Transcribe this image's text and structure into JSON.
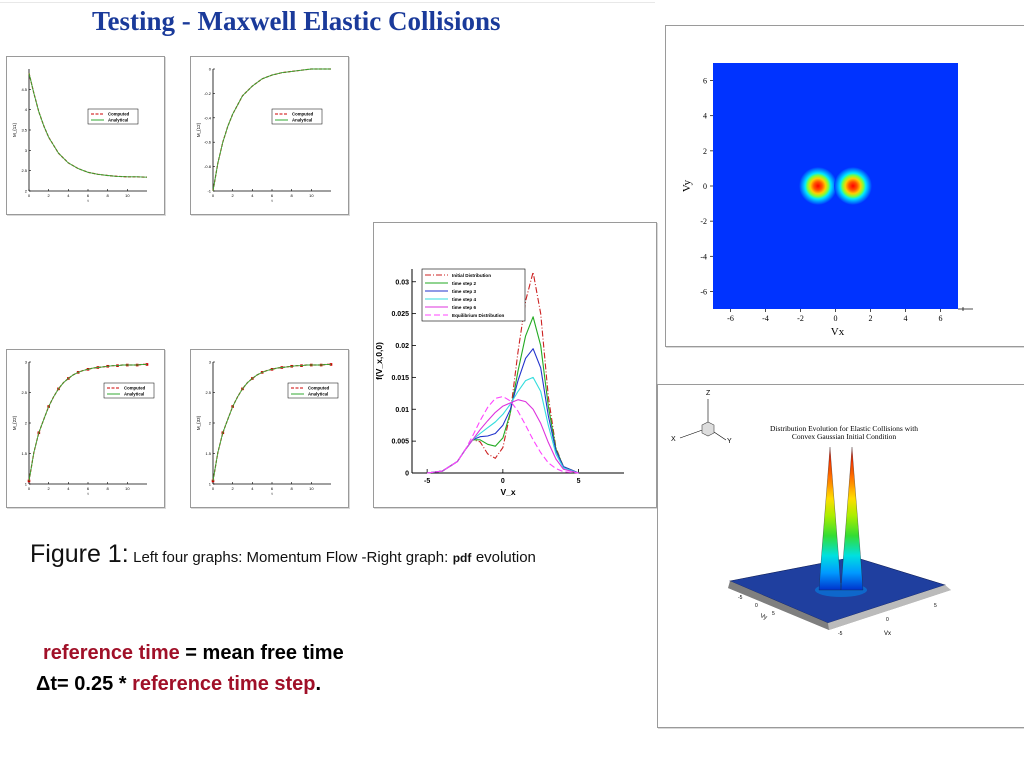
{
  "slide": {
    "title": "Testing - Maxwell Elastic Collisions",
    "caption_lead": "Figure 1:",
    "caption_text": "Left four graphs: Momentum Flow -Right graph:",
    "caption_pdf": "pdf",
    "caption_tail": "evolution",
    "note1_accent": "reference time",
    "note1_rest": " = mean free time",
    "note2_start": "Δt= 0.25 * ",
    "note2_accent": "reference time step",
    "note2_end": "."
  },
  "colors": {
    "title": "#1a3a9a",
    "accent": "#a01028",
    "computed": "#cc0000",
    "analytical": "#33aa33",
    "field_background": "#0033ff"
  },
  "chart_data": [
    {
      "id": "p1",
      "type": "line",
      "ylabel": "M_{11}",
      "legend": [
        "Computed",
        "Analytical"
      ],
      "xlim": [
        0,
        12
      ],
      "ylim": [
        2.0,
        5.0
      ],
      "xticks": [
        0,
        2,
        4,
        6,
        8,
        10
      ],
      "yticks": [
        2.0,
        2.5,
        3.0,
        3.5,
        4.0,
        4.5
      ],
      "series": [
        {
          "name": "Computed",
          "x": [
            0,
            0.5,
            1,
            1.5,
            2,
            3,
            4,
            5,
            6,
            7,
            8,
            9,
            10,
            11,
            12
          ],
          "values": [
            4.9,
            4.4,
            3.95,
            3.6,
            3.32,
            2.93,
            2.69,
            2.55,
            2.46,
            2.41,
            2.38,
            2.36,
            2.35,
            2.35,
            2.34
          ]
        },
        {
          "name": "Analytical",
          "x": [
            0,
            0.5,
            1,
            1.5,
            2,
            3,
            4,
            5,
            6,
            7,
            8,
            9,
            10,
            11,
            12
          ],
          "values": [
            4.9,
            4.4,
            3.95,
            3.6,
            3.32,
            2.93,
            2.69,
            2.55,
            2.46,
            2.41,
            2.38,
            2.36,
            2.35,
            2.35,
            2.34
          ]
        }
      ]
    },
    {
      "id": "p2",
      "type": "line",
      "ylabel": "M_{12}",
      "legend": [
        "Computed",
        "Analytical"
      ],
      "xlim": [
        0,
        12
      ],
      "ylim": [
        -1.0,
        0
      ],
      "xticks": [
        0,
        2,
        4,
        6,
        8,
        10
      ],
      "yticks": [
        -1,
        -0.8,
        -0.6,
        -0.4,
        -0.2,
        0
      ],
      "series": [
        {
          "name": "Computed",
          "x": [
            0,
            0.5,
            1,
            1.5,
            2,
            3,
            4,
            5,
            6,
            7,
            8,
            9,
            10,
            11,
            12
          ],
          "values": [
            -1.0,
            -0.77,
            -0.6,
            -0.47,
            -0.37,
            -0.22,
            -0.14,
            -0.08,
            -0.05,
            -0.03,
            -0.02,
            -0.01,
            0,
            0,
            0
          ]
        },
        {
          "name": "Analytical",
          "x": [
            0,
            0.5,
            1,
            1.5,
            2,
            3,
            4,
            5,
            6,
            7,
            8,
            9,
            10,
            11,
            12
          ],
          "values": [
            -1.0,
            -0.77,
            -0.6,
            -0.47,
            -0.37,
            -0.22,
            -0.14,
            -0.08,
            -0.05,
            -0.03,
            -0.02,
            -0.01,
            0,
            0,
            0
          ]
        }
      ]
    },
    {
      "id": "p3",
      "type": "line",
      "ylabel": "M_{22}",
      "legend": [
        "Computed",
        "Analytical"
      ],
      "xlim": [
        0,
        12
      ],
      "ylim": [
        1.0,
        3.0
      ],
      "xticks": [
        0,
        2,
        4,
        6,
        8,
        10
      ],
      "yticks": [
        1.0,
        1.5,
        2.0,
        2.5,
        3.0
      ],
      "series": [
        {
          "name": "Computed",
          "x": [
            0,
            0.5,
            1,
            1.5,
            2,
            2.5,
            3,
            3.5,
            4,
            4.5,
            5,
            5.5,
            6,
            6.5,
            7,
            7.5,
            8,
            8.5,
            9,
            9.5,
            10,
            10.5,
            11,
            11.5,
            12
          ],
          "values": [
            1.05,
            1.52,
            1.84,
            2.06,
            2.27,
            2.43,
            2.56,
            2.66,
            2.73,
            2.79,
            2.83,
            2.86,
            2.88,
            2.9,
            2.91,
            2.92,
            2.93,
            2.94,
            2.94,
            2.95,
            2.95,
            2.95,
            2.95,
            2.96,
            2.96
          ]
        },
        {
          "name": "Analytical",
          "x": [
            0,
            0.5,
            1,
            1.5,
            2,
            2.5,
            3,
            3.5,
            4,
            4.5,
            5,
            5.5,
            6,
            6.5,
            7,
            7.5,
            8,
            8.5,
            9,
            9.5,
            10,
            10.5,
            11,
            11.5,
            12
          ],
          "values": [
            1.05,
            1.52,
            1.84,
            2.06,
            2.27,
            2.43,
            2.56,
            2.66,
            2.73,
            2.79,
            2.83,
            2.86,
            2.88,
            2.9,
            2.91,
            2.92,
            2.93,
            2.94,
            2.94,
            2.95,
            2.95,
            2.95,
            2.95,
            2.96,
            2.96
          ]
        }
      ]
    },
    {
      "id": "p4",
      "type": "line",
      "ylabel": "M_{33}",
      "legend": [
        "Computed",
        "Analytical"
      ],
      "xlim": [
        0,
        12
      ],
      "ylim": [
        1.0,
        3.0
      ],
      "xticks": [
        0,
        2,
        4,
        6,
        8,
        10
      ],
      "yticks": [
        1.0,
        1.5,
        2.0,
        2.5,
        3.0
      ],
      "series": [
        {
          "name": "Computed",
          "x": [
            0,
            0.5,
            1,
            1.5,
            2,
            2.5,
            3,
            3.5,
            4,
            4.5,
            5,
            5.5,
            6,
            6.5,
            7,
            7.5,
            8,
            8.5,
            9,
            9.5,
            10,
            10.5,
            11,
            11.5,
            12
          ],
          "values": [
            1.05,
            1.52,
            1.84,
            2.06,
            2.27,
            2.43,
            2.56,
            2.66,
            2.73,
            2.79,
            2.83,
            2.86,
            2.88,
            2.9,
            2.91,
            2.92,
            2.93,
            2.94,
            2.94,
            2.95,
            2.95,
            2.95,
            2.95,
            2.96,
            2.96
          ]
        },
        {
          "name": "Analytical",
          "x": [
            0,
            0.5,
            1,
            1.5,
            2,
            2.5,
            3,
            3.5,
            4,
            4.5,
            5,
            5.5,
            6,
            6.5,
            7,
            7.5,
            8,
            8.5,
            9,
            9.5,
            10,
            10.5,
            11,
            11.5,
            12
          ],
          "values": [
            1.05,
            1.52,
            1.84,
            2.06,
            2.27,
            2.43,
            2.56,
            2.66,
            2.73,
            2.79,
            2.83,
            2.86,
            2.88,
            2.9,
            2.91,
            2.92,
            2.93,
            2.94,
            2.94,
            2.95,
            2.95,
            2.95,
            2.95,
            2.96,
            2.96
          ]
        }
      ]
    },
    {
      "id": "pdf",
      "type": "line",
      "xlabel": "V_x",
      "ylabel": "f(V_x,0,0)",
      "xlim": [
        -6,
        8
      ],
      "ylim": [
        0,
        0.032
      ],
      "xticks": [
        -5,
        0,
        5
      ],
      "yticks": [
        0,
        0.005,
        0.01,
        0.015,
        0.02,
        0.025,
        0.03
      ],
      "ytick_labels": [
        "0",
        "0.005",
        "0.01",
        "0.015",
        "0.02",
        "0.025",
        "0.03"
      ],
      "legend_position": "top-left",
      "series": [
        {
          "name": "Initial Distribution",
          "color": "#cc2222",
          "dash": "6,2,1,2",
          "x": [
            -5,
            -4,
            -3,
            -2.5,
            -2,
            -1.5,
            -1,
            -0.5,
            0,
            0.5,
            1,
            1.5,
            2,
            2.5,
            3,
            3.5,
            4,
            5
          ],
          "values": [
            0,
            0.0003,
            0.0018,
            0.0036,
            0.0052,
            0.0049,
            0.003,
            0.0023,
            0.004,
            0.0095,
            0.019,
            0.027,
            0.0315,
            0.025,
            0.012,
            0.004,
            0.001,
            0
          ]
        },
        {
          "name": "time step 2",
          "color": "#22aa22",
          "dash": "",
          "x": [
            -5,
            -4,
            -3,
            -2.5,
            -2,
            -1.5,
            -1,
            -0.5,
            0,
            0.5,
            1,
            1.5,
            2,
            2.5,
            3,
            3.5,
            4,
            5
          ],
          "values": [
            0,
            0.0003,
            0.0018,
            0.0036,
            0.0052,
            0.0052,
            0.0045,
            0.0042,
            0.0055,
            0.0095,
            0.016,
            0.0215,
            0.0245,
            0.02,
            0.0105,
            0.0038,
            0.001,
            0
          ]
        },
        {
          "name": "time step 3",
          "color": "#2233cc",
          "dash": "",
          "x": [
            -5,
            -4,
            -3,
            -2.5,
            -2,
            -1.5,
            -1,
            -0.5,
            0,
            0.5,
            1,
            1.5,
            2,
            2.5,
            3,
            3.5,
            4,
            5
          ],
          "values": [
            0,
            0.0003,
            0.0018,
            0.0036,
            0.0052,
            0.0057,
            0.0058,
            0.0062,
            0.0075,
            0.01,
            0.0145,
            0.018,
            0.0195,
            0.0165,
            0.009,
            0.0035,
            0.001,
            0
          ]
        },
        {
          "name": "time step 4",
          "color": "#33dddd",
          "dash": "",
          "x": [
            -5,
            -4,
            -3,
            -2.5,
            -2,
            -1.5,
            -1,
            -0.5,
            0,
            0.5,
            1,
            1.5,
            2,
            2.5,
            3,
            3.5,
            4,
            5
          ],
          "values": [
            0,
            0.0003,
            0.0018,
            0.0036,
            0.0052,
            0.0062,
            0.0071,
            0.008,
            0.0092,
            0.0108,
            0.0128,
            0.0145,
            0.015,
            0.0128,
            0.0075,
            0.003,
            0.0008,
            0
          ]
        },
        {
          "name": "time step 6",
          "color": "#dd33dd",
          "dash": "",
          "x": [
            -5,
            -4,
            -3,
            -2.5,
            -2,
            -1.5,
            -1,
            -0.5,
            0,
            0.5,
            1,
            1.5,
            2,
            2.5,
            3,
            3.5,
            4,
            5
          ],
          "values": [
            0,
            0.0003,
            0.0018,
            0.0036,
            0.0052,
            0.0068,
            0.0082,
            0.0095,
            0.0105,
            0.011,
            0.0115,
            0.0112,
            0.01,
            0.0078,
            0.0048,
            0.0022,
            0.0006,
            0
          ]
        },
        {
          "name": "Equilibrium Distribution",
          "color": "#ff44ff",
          "dash": "6,3",
          "x": [
            -5,
            -4,
            -3,
            -2.5,
            -2,
            -1.5,
            -1,
            -0.5,
            0,
            0.5,
            1,
            1.5,
            2,
            2.5,
            3,
            3.5,
            4,
            5
          ],
          "values": [
            0,
            0.0003,
            0.0018,
            0.0036,
            0.0058,
            0.0082,
            0.0103,
            0.0117,
            0.012,
            0.0113,
            0.0097,
            0.0075,
            0.0052,
            0.0032,
            0.0016,
            0.0007,
            0.0002,
            0
          ]
        }
      ]
    },
    {
      "id": "contour",
      "type": "heatmap",
      "xlabel": "Vx",
      "ylabel": "Vy",
      "xlim": [
        -7,
        7
      ],
      "ylim": [
        -7,
        7
      ],
      "xticks": [
        -6,
        -4,
        -2,
        0,
        2,
        4,
        6
      ],
      "yticks": [
        -6,
        -4,
        -2,
        0,
        2,
        4,
        6
      ],
      "peaks": [
        {
          "x": -1,
          "y": 0
        },
        {
          "x": 1,
          "y": 0
        }
      ]
    },
    {
      "id": "surface",
      "type": "heatmap",
      "title_line1": "Distribution Evolution for Elastic Collisions with",
      "title_line2": "Convex Gaussian Initial Condition",
      "axis_labels": {
        "z": "Z",
        "x": "X",
        "y": "Y",
        "vx": "Vx",
        "vy": "Vy"
      },
      "peaks": [
        {
          "x": -1,
          "y": 0
        },
        {
          "x": 1,
          "y": 0
        }
      ]
    }
  ]
}
